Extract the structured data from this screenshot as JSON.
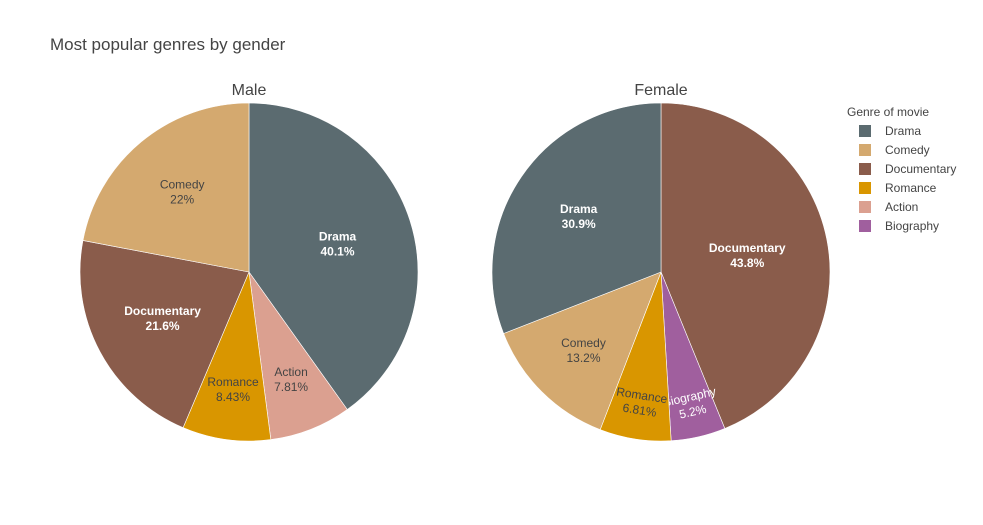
{
  "chart_data": {
    "type": "pie",
    "title": "Most popular genres by gender",
    "legend": {
      "title": "Genre of movie",
      "placement": "right",
      "items": [
        {
          "name": "Drama",
          "color": "#5b6b70"
        },
        {
          "name": "Comedy",
          "color": "#d4a96f"
        },
        {
          "name": "Documentary",
          "color": "#8a5c4b"
        },
        {
          "name": "Romance",
          "color": "#d99600"
        },
        {
          "name": "Action",
          "color": "#dba090"
        },
        {
          "name": "Biography",
          "color": "#a05f9e"
        }
      ]
    },
    "pies": [
      {
        "name": "Male",
        "slices": [
          {
            "label": "Drama",
            "value": 40.1,
            "text": "40.1%",
            "text_color": "#ffffff",
            "bold": true
          },
          {
            "label": "Action",
            "value": 7.81,
            "text": "7.81%",
            "text_color": "#444444",
            "bold": false
          },
          {
            "label": "Romance",
            "value": 8.43,
            "text": "8.43%",
            "text_color": "#444444",
            "bold": false
          },
          {
            "label": "Documentary",
            "value": 21.6,
            "text": "21.6%",
            "text_color": "#ffffff",
            "bold": true
          },
          {
            "label": "Comedy",
            "value": 22,
            "text": "22%",
            "text_color": "#444444",
            "bold": false
          }
        ]
      },
      {
        "name": "Female",
        "slices": [
          {
            "label": "Documentary",
            "value": 43.8,
            "text": "43.8%",
            "text_color": "#ffffff",
            "bold": true
          },
          {
            "label": "Biography",
            "value": 5.2,
            "text": "5.2%",
            "text_color": "#ffffff",
            "bold": false
          },
          {
            "label": "Romance",
            "value": 6.81,
            "text": "6.81%",
            "text_color": "#444444",
            "bold": false
          },
          {
            "label": "Comedy",
            "value": 13.2,
            "text": "13.2%",
            "text_color": "#444444",
            "bold": false
          },
          {
            "label": "Drama",
            "value": 30.9,
            "text": "30.9%",
            "text_color": "#ffffff",
            "bold": true
          }
        ]
      }
    ]
  }
}
